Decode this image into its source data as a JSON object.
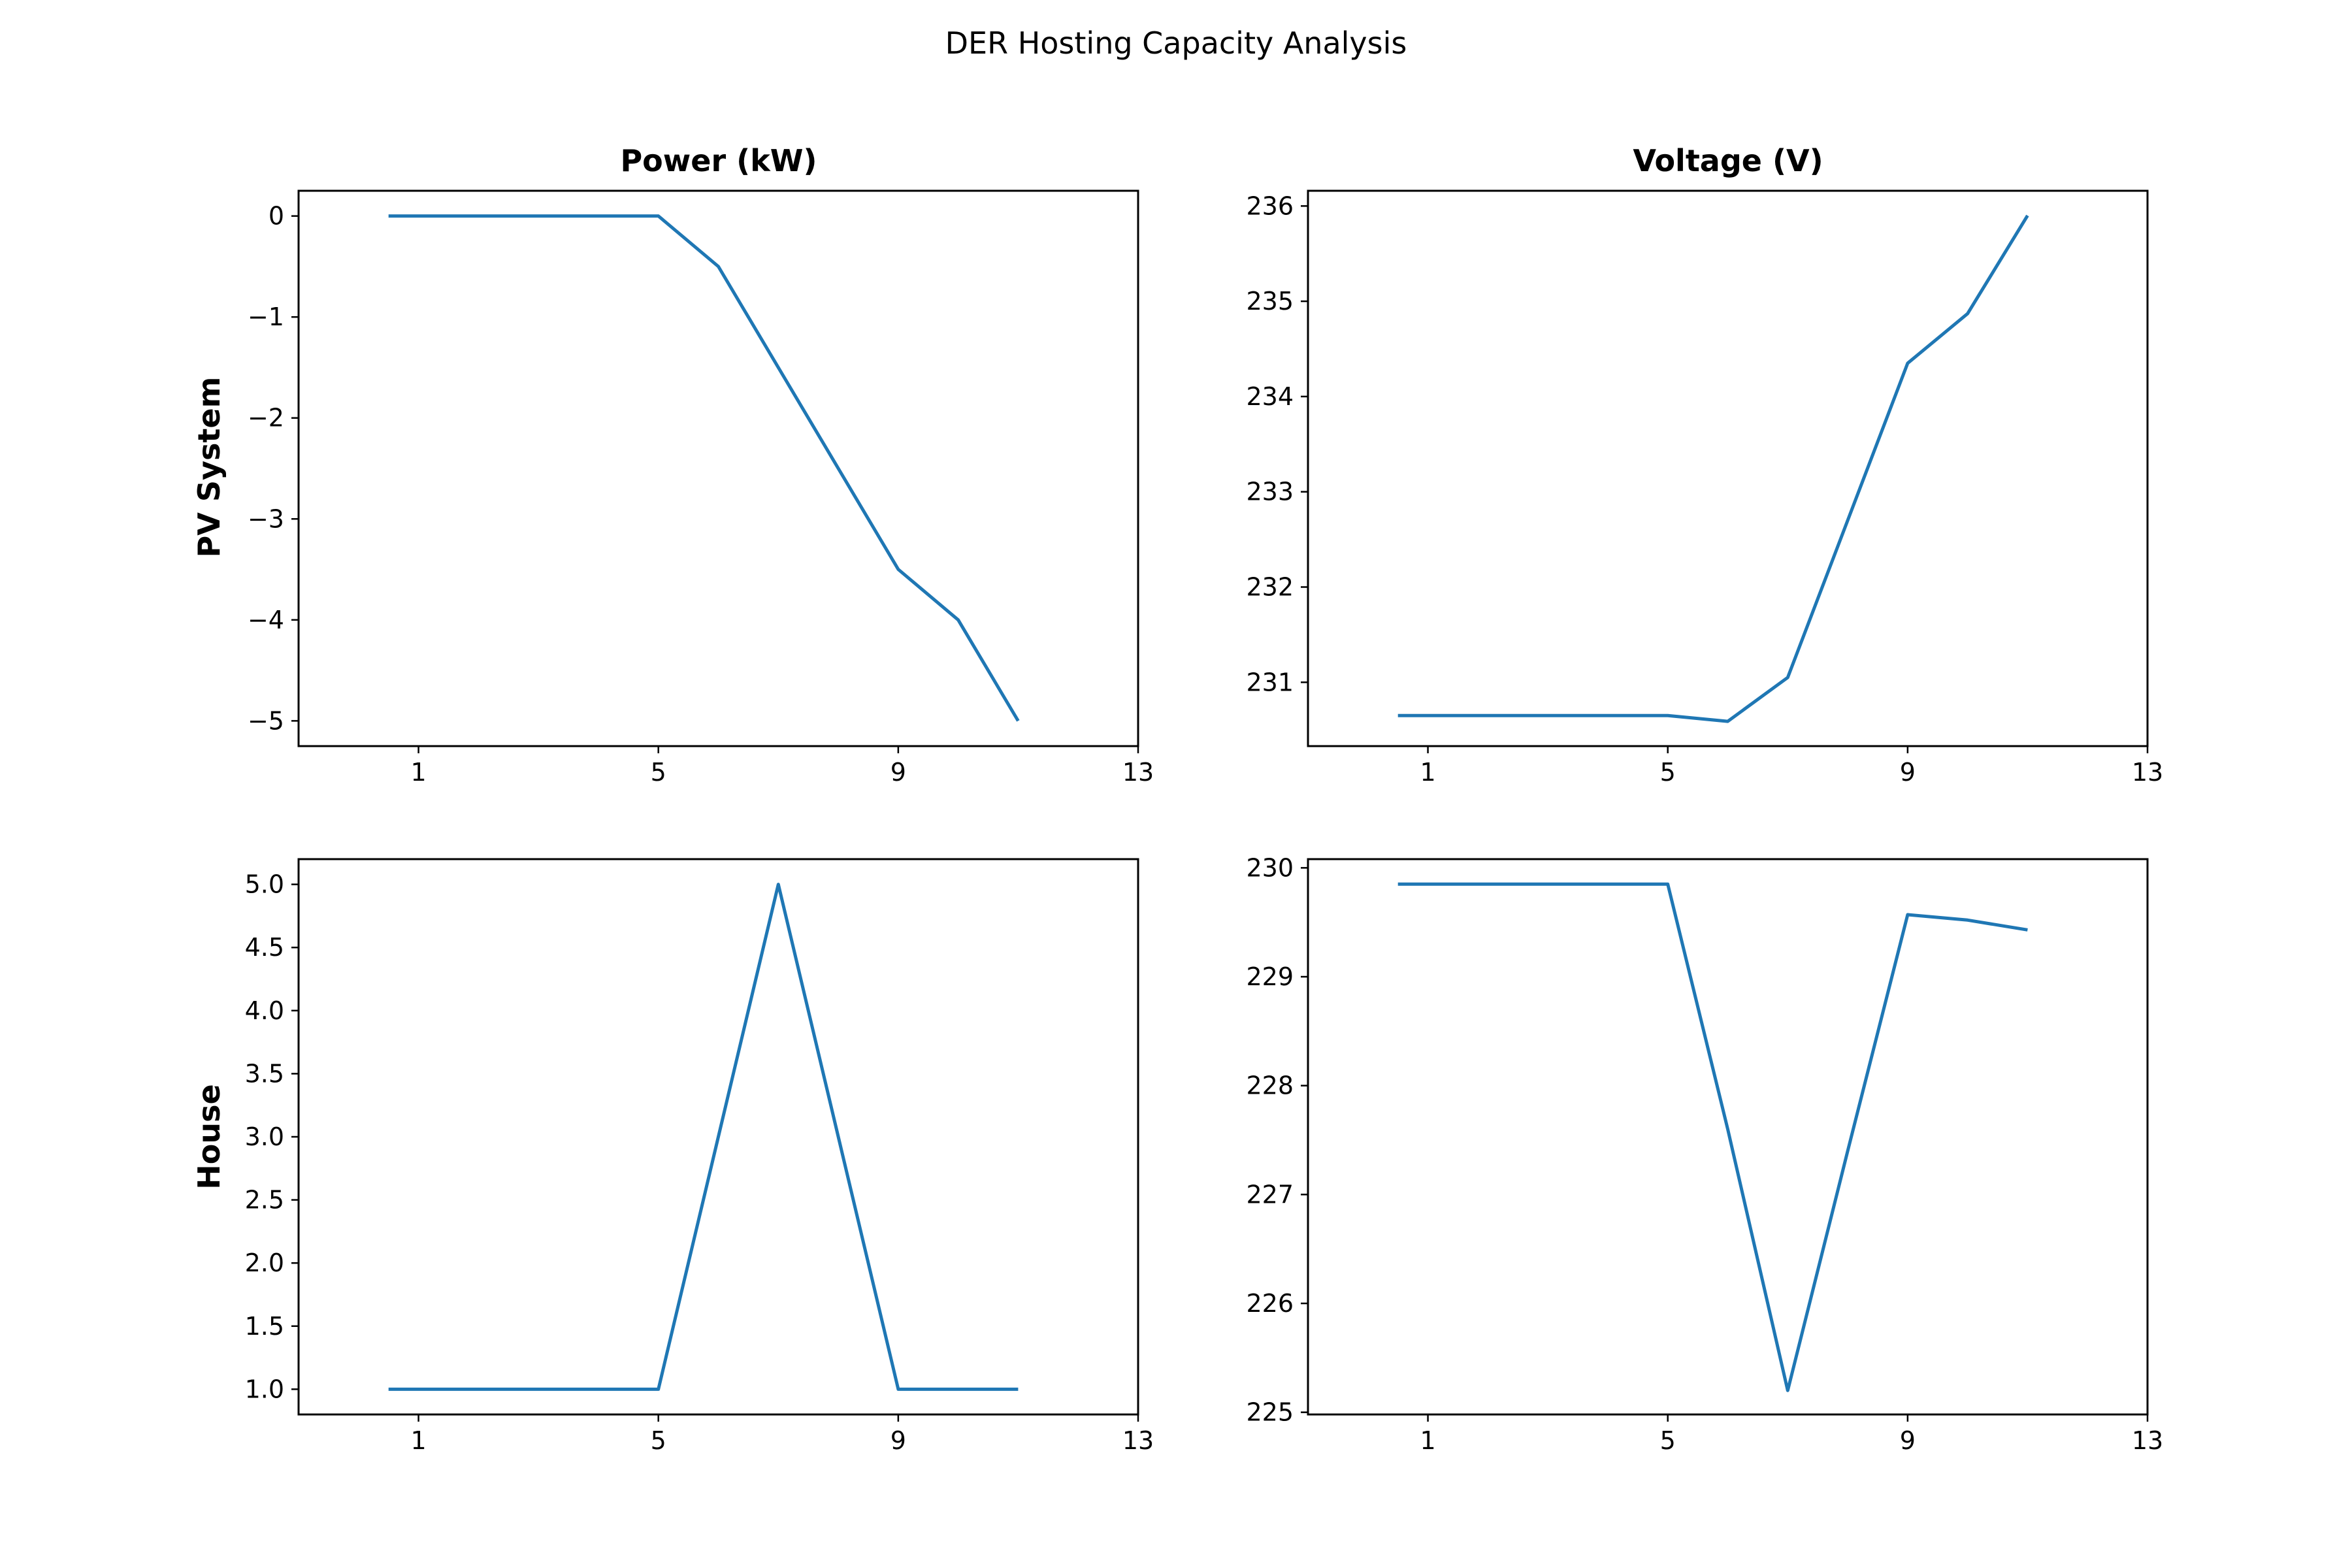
{
  "figure": {
    "suptitle": "DER Hosting Capacity Analysis",
    "line_color": "#1f77b4"
  },
  "chart_data": [
    {
      "type": "line",
      "title": "Power (kW)",
      "ylabel": "PV System",
      "x": [
        0.5,
        1,
        2,
        3,
        4,
        5,
        6,
        7,
        8,
        9,
        10,
        11
      ],
      "values": [
        0,
        0,
        0,
        0,
        0,
        0,
        -0.5,
        -1.5,
        -2.5,
        -3.5,
        -4,
        -5
      ],
      "xticks": [
        1,
        5,
        9,
        13
      ],
      "yticks": [
        0,
        -1,
        -2,
        -3,
        -4,
        -5
      ],
      "ytick_labels": [
        "0",
        "−1",
        "−2",
        "−3",
        "−4",
        "−5"
      ],
      "xlim": [
        -1,
        13
      ],
      "ylim": [
        -5.25,
        0.25
      ],
      "grid": false
    },
    {
      "type": "line",
      "title": "Voltage (V)",
      "ylabel": "",
      "x": [
        0.5,
        1,
        2,
        3,
        4,
        5,
        6,
        7,
        8,
        9,
        10,
        11
      ],
      "values": [
        230.65,
        230.65,
        230.65,
        230.65,
        230.65,
        230.65,
        230.59,
        231.05,
        232.7,
        234.35,
        234.87,
        235.9
      ],
      "xticks": [
        1,
        5,
        9,
        13
      ],
      "yticks": [
        231,
        232,
        233,
        234,
        235,
        236
      ],
      "ytick_labels": [
        "231",
        "232",
        "233",
        "234",
        "235",
        "236"
      ],
      "xlim": [
        -1,
        13
      ],
      "ylim": [
        230.33,
        236.16
      ],
      "grid": false
    },
    {
      "type": "line",
      "title": "",
      "ylabel": "House",
      "x": [
        0.5,
        1,
        2,
        3,
        4,
        5,
        6,
        7,
        8,
        9,
        10,
        11
      ],
      "values": [
        1,
        1,
        1,
        1,
        1,
        1,
        3,
        5,
        3,
        1,
        1,
        1
      ],
      "xticks": [
        1,
        5,
        9,
        13
      ],
      "yticks": [
        1.0,
        1.5,
        2.0,
        2.5,
        3.0,
        3.5,
        4.0,
        4.5,
        5.0
      ],
      "ytick_labels": [
        "1.0",
        "1.5",
        "2.0",
        "2.5",
        "3.0",
        "3.5",
        "4.0",
        "4.5",
        "5.0"
      ],
      "xlim": [
        -1,
        13
      ],
      "ylim": [
        0.8,
        5.2
      ],
      "grid": false
    },
    {
      "type": "line",
      "title": "",
      "ylabel": "",
      "x": [
        0.5,
        1,
        2,
        3,
        4,
        5,
        6,
        7,
        8,
        9,
        10,
        11
      ],
      "values": [
        229.85,
        229.85,
        229.85,
        229.85,
        229.85,
        229.85,
        227.6,
        225.2,
        227.4,
        229.57,
        229.52,
        229.43
      ],
      "xticks": [
        1,
        5,
        9,
        13
      ],
      "yticks": [
        225,
        226,
        227,
        228,
        229,
        230
      ],
      "ytick_labels": [
        "225",
        "226",
        "227",
        "228",
        "229",
        "230"
      ],
      "xlim": [
        -1,
        13
      ],
      "ylim": [
        224.98,
        230.08
      ],
      "grid": false
    }
  ]
}
